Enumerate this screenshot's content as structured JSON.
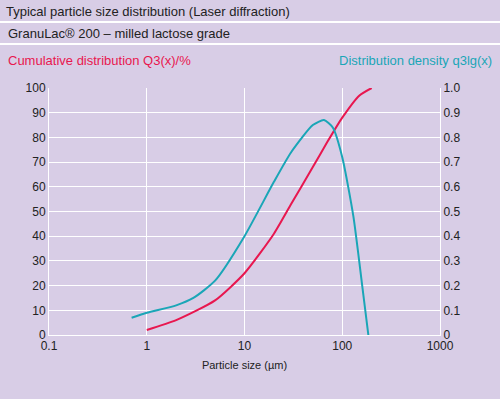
{
  "chart_data": {
    "type": "line",
    "title": "Typical particle size distribution (Laser diffraction)",
    "subtitle": "GranuLac® 200 – milled lactose grade",
    "xlabel": "Particle size (µm)",
    "ylabel": "Cumulative distribution Q3(x)/%",
    "y2label": "Distribution density q3lg(x)",
    "log": "x",
    "grid": true,
    "xlim": [
      0.1,
      1000
    ],
    "xticks": [
      0.1,
      1,
      10,
      100,
      1000
    ],
    "ylim": [
      0,
      100
    ],
    "yticks": [
      0,
      10,
      20,
      30,
      40,
      50,
      60,
      70,
      80,
      90,
      100
    ],
    "y2lim": [
      0,
      1
    ],
    "y2ticks": [
      0,
      0.1,
      0.2,
      0.3,
      0.4,
      0.5,
      0.6,
      0.7,
      0.8,
      0.9,
      {
        "value": 1,
        "label": "1.0"
      }
    ],
    "series": [
      {
        "name": "Cumulative distribution Q3(x)/%",
        "color": "#e8174f",
        "x": [
          1,
          2,
          5,
          10,
          20,
          30,
          50,
          70,
          100,
          150,
          200
        ],
        "values": [
          2,
          6,
          14,
          25,
          41,
          53,
          68,
          78,
          88,
          97,
          100
        ]
      },
      {
        "name": "Distribution density q3lg(x)",
        "color": "#1aa6b7",
        "axis": "y2",
        "x": [
          0.7,
          1,
          2,
          3,
          5,
          10,
          20,
          30,
          50,
          65,
          80,
          100,
          130,
          160,
          185
        ],
        "values": [
          0.07,
          0.09,
          0.12,
          0.15,
          0.22,
          0.4,
          0.62,
          0.74,
          0.85,
          0.87,
          0.84,
          0.72,
          0.48,
          0.2,
          0
        ]
      }
    ]
  }
}
